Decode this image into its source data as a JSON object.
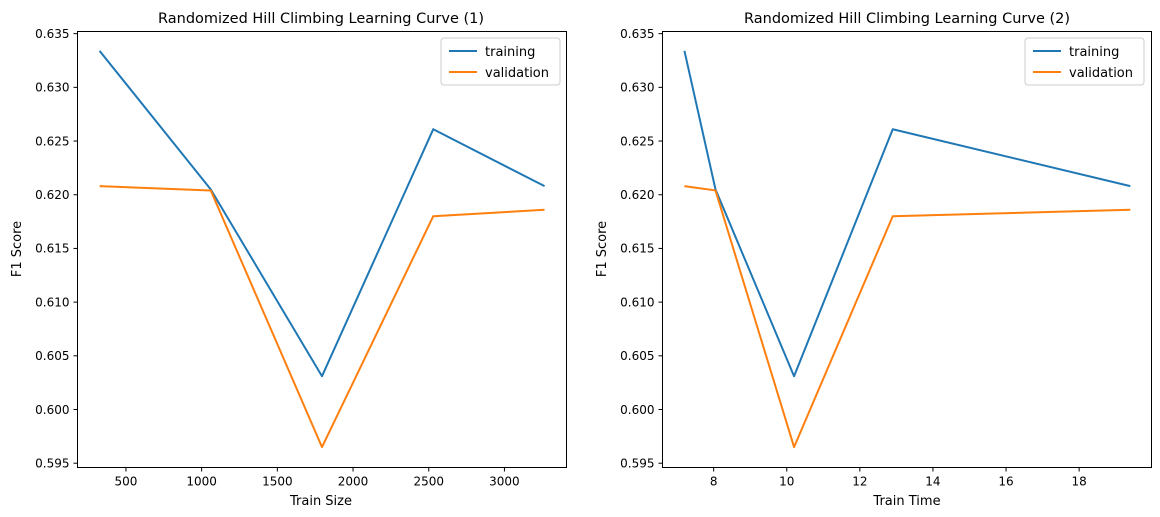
{
  "chart_data": [
    {
      "type": "line",
      "title": "Randomized Hill Climbing Learning Curve (1)",
      "xlabel": "Train Size",
      "ylabel": "F1 Score",
      "xlim": [
        180,
        3410
      ],
      "ylim": [
        0.5946,
        0.6352
      ],
      "xticks": [
        500,
        1000,
        1500,
        2000,
        2500,
        3000
      ],
      "xtick_labels": [
        "500",
        "1000",
        "1500",
        "2000",
        "2500",
        "3000"
      ],
      "yticks": [
        0.595,
        0.6,
        0.605,
        0.61,
        0.615,
        0.62,
        0.625,
        0.63,
        0.635
      ],
      "ytick_labels": [
        "0.595",
        "0.600",
        "0.605",
        "0.610",
        "0.615",
        "0.620",
        "0.625",
        "0.630",
        "0.635"
      ],
      "grid": false,
      "legend_position": "top-right",
      "x": [
        326,
        1060,
        1795,
        2530,
        3265
      ],
      "series": [
        {
          "name": "training",
          "color": "#1f77b4",
          "values": [
            0.6334,
            0.6205,
            0.6031,
            0.6261,
            0.6208
          ]
        },
        {
          "name": "validation",
          "color": "#ff7f0e",
          "values": [
            0.6208,
            0.6204,
            0.5965,
            0.618,
            0.6186
          ]
        }
      ]
    },
    {
      "type": "line",
      "title": "Randomized Hill Climbing Learning Curve (2)",
      "xlabel": "Train Time",
      "ylabel": "F1 Score",
      "xlim": [
        6.6,
        19.98
      ],
      "ylim": [
        0.5946,
        0.6352
      ],
      "xticks": [
        8,
        10,
        12,
        14,
        16,
        18
      ],
      "xtick_labels": [
        "8",
        "10",
        "12",
        "14",
        "16",
        "18"
      ],
      "yticks": [
        0.595,
        0.6,
        0.605,
        0.61,
        0.615,
        0.62,
        0.625,
        0.63,
        0.635
      ],
      "ytick_labels": [
        "0.595",
        "0.600",
        "0.605",
        "0.610",
        "0.615",
        "0.620",
        "0.625",
        "0.630",
        "0.635"
      ],
      "grid": false,
      "legend_position": "top-right",
      "x": [
        7.2,
        8.05,
        10.2,
        12.9,
        19.4
      ],
      "series": [
        {
          "name": "training",
          "color": "#1f77b4",
          "values": [
            0.6334,
            0.6205,
            0.6031,
            0.6261,
            0.6208
          ]
        },
        {
          "name": "validation",
          "color": "#ff7f0e",
          "values": [
            0.6208,
            0.6204,
            0.5965,
            0.618,
            0.6186
          ]
        }
      ]
    }
  ]
}
